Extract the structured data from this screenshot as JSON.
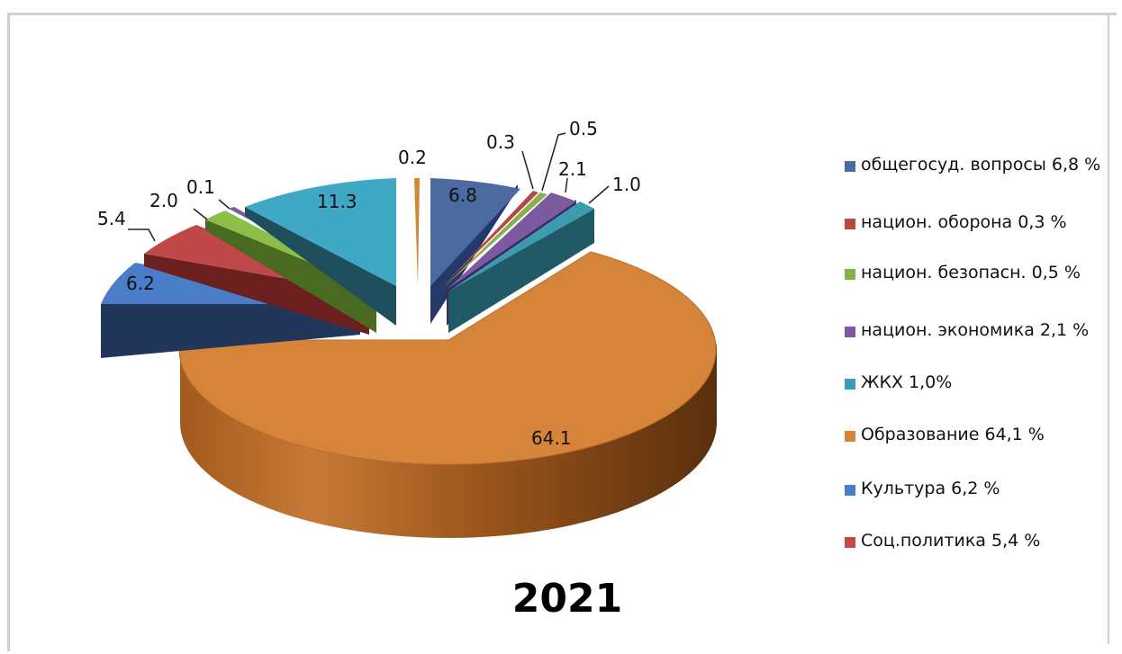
{
  "chart_data": {
    "type": "pie",
    "title": "2021",
    "slices": [
      {
        "label": "6.8",
        "value": 6.8,
        "color": "#4a6aa0",
        "legend": "общегосуд. вопросы 6,8 %"
      },
      {
        "label": "0.3",
        "value": 0.3,
        "color": "#b84848",
        "legend": "национ. оборона 0,3 %"
      },
      {
        "label": "0.5",
        "value": 0.5,
        "color": "#8bb04a",
        "legend": "национ. безопасн. 0,5 %"
      },
      {
        "label": "2.1",
        "value": 2.1,
        "color": "#7b5aa0",
        "legend": "национ. экономика 2,1 %"
      },
      {
        "label": "1.0",
        "value": 1.0,
        "color": "#3d9bb0",
        "legend": "ЖКХ 1,0%"
      },
      {
        "label": "64.1",
        "value": 64.1,
        "color": "#d5843a",
        "legend": "Образование 64,1 %"
      },
      {
        "label": "6.2",
        "value": 6.2,
        "color": "#4a7cc8",
        "legend": "Культура 6,2 %"
      },
      {
        "label": "5.4",
        "value": 5.4,
        "color": "#c04848",
        "legend": "Соц.политика 5,4 %"
      },
      {
        "label": "2.0",
        "value": 2.0,
        "color": "#8bbf4a",
        "legend": null
      },
      {
        "label": "0.1",
        "value": 0.1,
        "color": "#7b5aa0",
        "legend": null
      },
      {
        "label": "11.3",
        "value": 11.3,
        "color": "#3fa8c4",
        "legend": null
      },
      {
        "label": "0.2",
        "value": 0.2,
        "color": "#d5843a",
        "legend": null
      }
    ],
    "legend_position": "right"
  }
}
